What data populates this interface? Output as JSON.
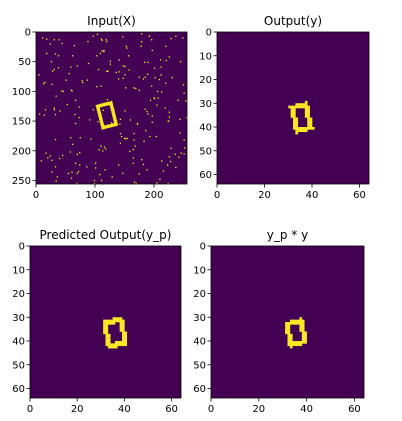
{
  "chart_data": [
    {
      "type": "heatmap",
      "title": "Input(X)",
      "image_size": 256,
      "xticks": [
        0,
        100,
        200
      ],
      "yticks": [
        0,
        50,
        100,
        150,
        200,
        250
      ],
      "xlim": [
        0,
        256
      ],
      "ylim": [
        256,
        0
      ],
      "background_color": "#440154",
      "foreground_color": "#fde725",
      "noise": "sparse single-pixel speckle",
      "object": {
        "shape": "rotated hollow rectangle",
        "center": [
          120,
          140
        ],
        "width": 28,
        "height": 42,
        "angle_deg": -14,
        "thickness": 5
      }
    },
    {
      "type": "heatmap",
      "title": "Output(y)",
      "image_size": 64,
      "xticks": [
        0,
        20,
        40,
        60
      ],
      "yticks": [
        0,
        10,
        20,
        30,
        40,
        50,
        60
      ],
      "xlim": [
        0,
        64
      ],
      "ylim": [
        64,
        0
      ],
      "background_color": "#440154",
      "foreground_color": "#fde725",
      "object": {
        "shape": "rotated hollow rectangle",
        "center": [
          35.5,
          36
        ],
        "width": 8,
        "height": 12,
        "angle_deg": -14,
        "thickness": 2
      }
    },
    {
      "type": "heatmap",
      "title": "Predicted Output(y_p)",
      "image_size": 64,
      "xticks": [
        0,
        20,
        40,
        60
      ],
      "yticks": [
        0,
        10,
        20,
        30,
        40,
        50,
        60
      ],
      "xlim": [
        0,
        64
      ],
      "ylim": [
        64,
        0
      ],
      "background_color": "#440154",
      "foreground_color": "#fde725",
      "object": {
        "shape": "rotated hollow rectangle",
        "center": [
          36,
          36.5
        ],
        "width": 9,
        "height": 12,
        "angle_deg": -12,
        "thickness": 2
      }
    },
    {
      "type": "heatmap",
      "title": "y_p * y",
      "image_size": 64,
      "xticks": [
        0,
        20,
        40,
        60
      ],
      "yticks": [
        0,
        10,
        20,
        30,
        40,
        50,
        60
      ],
      "xlim": [
        0,
        64
      ],
      "ylim": [
        64,
        0
      ],
      "background_color": "#440154",
      "foreground_color": "#fde725",
      "object": {
        "shape": "rotated hollow rectangle",
        "center": [
          35.5,
          36.5
        ],
        "width": 8,
        "height": 11,
        "angle_deg": -12,
        "thickness": 2
      }
    }
  ]
}
